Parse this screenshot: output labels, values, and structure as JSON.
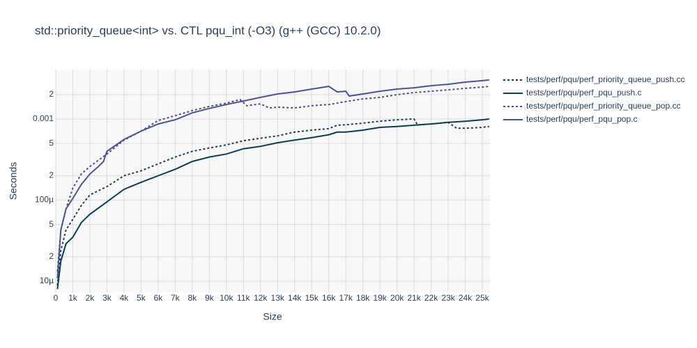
{
  "chart_data": {
    "type": "line",
    "title": "std::priority_queue<int> vs. CTL pqu_int (-O3) (g++ (GCC) 10.2.0)",
    "x_label": "Size",
    "y_label": "Seconds",
    "log_y": true,
    "grid": true,
    "legend": "right",
    "xlim": [
      0,
      25450
    ],
    "ylim": [
      7.3e-06,
      0.00407
    ],
    "xticks": [
      0,
      {
        "value": 1000,
        "label": "1k"
      },
      {
        "value": 2000,
        "label": "2k"
      },
      {
        "value": 3000,
        "label": "3k"
      },
      {
        "value": 4000,
        "label": "4k"
      },
      {
        "value": 5000,
        "label": "5k"
      },
      {
        "value": 6000,
        "label": "6k"
      },
      {
        "value": 7000,
        "label": "7k"
      },
      {
        "value": 8000,
        "label": "8k"
      },
      {
        "value": 9000,
        "label": "9k"
      },
      {
        "value": 10000,
        "label": "10k"
      },
      {
        "value": 11000,
        "label": "11k"
      },
      {
        "value": 12000,
        "label": "12k"
      },
      {
        "value": 13000,
        "label": "13k"
      },
      {
        "value": 14000,
        "label": "14k"
      },
      {
        "value": 15000,
        "label": "15k"
      },
      {
        "value": 16000,
        "label": "16k"
      },
      {
        "value": 17000,
        "label": "17k"
      },
      {
        "value": 18000,
        "label": "18k"
      },
      {
        "value": 19000,
        "label": "19k"
      },
      {
        "value": 20000,
        "label": "20k"
      },
      {
        "value": 21000,
        "label": "21k"
      },
      {
        "value": 22000,
        "label": "22k"
      },
      {
        "value": 23000,
        "label": "23k"
      },
      {
        "value": 24000,
        "label": "24k"
      },
      {
        "value": 25000,
        "label": "25k"
      }
    ],
    "yticks": [
      {
        "value": 1e-05,
        "label": "10µ"
      },
      {
        "value": 2e-05,
        "label": "2"
      },
      {
        "value": 5e-05,
        "label": "5"
      },
      {
        "value": 0.0001,
        "label": "100µ"
      },
      {
        "value": 0.0002,
        "label": "2"
      },
      {
        "value": 0.0005,
        "label": "5"
      },
      0.001,
      {
        "value": 0.002,
        "label": "2"
      }
    ],
    "series": [
      {
        "name": "tests/perf/pqu/perf_priority_queue_push.cc",
        "color": "#1f3a5c",
        "dash": "dot",
        "x": [
          100,
          300,
          600,
          1000,
          1500,
          2000,
          3000,
          4000,
          5000,
          6000,
          7000,
          8000,
          9000,
          10000,
          11000,
          12000,
          13000,
          14000,
          15000,
          16000,
          16500,
          17000,
          18000,
          19000,
          20000,
          21000,
          21200,
          22000,
          23000,
          23500,
          24000,
          25000,
          25400
        ],
        "values": [
          8.9e-06,
          2.4e-05,
          4.3e-05,
          5.8e-05,
          8.6e-05,
          0.000116,
          0.000147,
          0.0002,
          0.00023,
          0.00028,
          0.00034,
          0.0004,
          0.00044,
          0.00048,
          0.00054,
          0.00058,
          0.00062,
          0.00069,
          0.00073,
          0.00076,
          0.00084,
          0.00085,
          0.00089,
          0.00094,
          0.00098,
          0.001,
          0.00085,
          0.00087,
          0.00091,
          0.00077,
          0.00077,
          0.00079,
          0.00081
        ]
      },
      {
        "name": "tests/perf/pqu/perf_pqu_push.c",
        "color": "#0b3e52",
        "dash": "solid",
        "x": [
          100,
          300,
          600,
          1000,
          1500,
          2000,
          3000,
          4000,
          5000,
          6000,
          7000,
          8000,
          9000,
          10000,
          11000,
          12000,
          13000,
          14000,
          15000,
          16000,
          16500,
          17000,
          18000,
          19000,
          20000,
          21000,
          22000,
          23000,
          24000,
          25000,
          25400
        ],
        "values": [
          8e-06,
          1.77e-05,
          2.9e-05,
          3.5e-05,
          5.3e-05,
          6.7e-05,
          9.5e-05,
          0.000136,
          0.000166,
          0.0002,
          0.00024,
          0.0003,
          0.00034,
          0.00037,
          0.00043,
          0.00046,
          0.00051,
          0.00055,
          0.00059,
          0.00064,
          0.00069,
          0.00069,
          0.00073,
          0.00079,
          0.00081,
          0.00084,
          0.00087,
          0.00091,
          0.00094,
          0.00098,
          0.001
        ]
      },
      {
        "name": "tests/perf/pqu/perf_priority_queue_pop.cc",
        "color": "#4c4f80",
        "dash": "dot",
        "x": [
          100,
          300,
          600,
          1000,
          1500,
          2000,
          3000,
          4000,
          5000,
          6000,
          7000,
          8000,
          9000,
          10000,
          10800,
          11200,
          12000,
          12500,
          13000,
          14000,
          15000,
          16000,
          17000,
          18000,
          19000,
          20000,
          21000,
          22000,
          23000,
          24000,
          25000,
          25400
        ],
        "values": [
          1.32e-05,
          4.3e-05,
          7.8e-05,
          0.000141,
          0.00021,
          0.00026,
          0.00037,
          0.00055,
          0.00071,
          0.00096,
          0.0011,
          0.00127,
          0.00143,
          0.00157,
          0.00174,
          0.00146,
          0.00154,
          0.00137,
          0.0014,
          0.00137,
          0.00146,
          0.00151,
          0.00164,
          0.00177,
          0.00185,
          0.002,
          0.00212,
          0.0022,
          0.00229,
          0.00239,
          0.00248,
          0.00253
        ]
      },
      {
        "name": "tests/perf/pqu/perf_pqu_pop.c",
        "color": "#4a5490",
        "dash": "solid",
        "x": [
          100,
          300,
          600,
          1000,
          1500,
          2000,
          2500,
          2800,
          3000,
          4000,
          5000,
          6000,
          7000,
          8000,
          9000,
          10000,
          11000,
          12000,
          13000,
          14000,
          15000,
          16000,
          16500,
          17000,
          17200,
          18000,
          19000,
          20000,
          21000,
          22000,
          23000,
          24000,
          25000,
          25400
        ],
        "values": [
          1.08e-05,
          4.3e-05,
          7.8e-05,
          0.000105,
          0.000156,
          0.00021,
          0.00026,
          0.0003,
          0.0004,
          0.00056,
          0.00071,
          0.00087,
          0.00098,
          0.00119,
          0.00135,
          0.00151,
          0.00167,
          0.00185,
          0.00204,
          0.00216,
          0.00234,
          0.00253,
          0.00216,
          0.0022,
          0.00192,
          0.00204,
          0.0022,
          0.00234,
          0.00243,
          0.00258,
          0.00268,
          0.00285,
          0.00297,
          0.00303
        ]
      }
    ]
  }
}
